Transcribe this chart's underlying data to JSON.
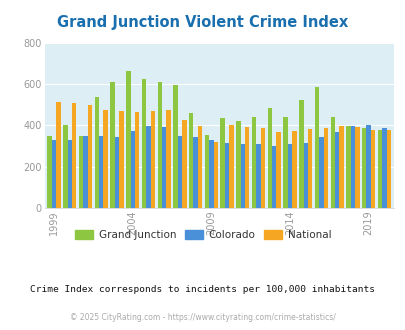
{
  "title": "Grand Junction Violent Crime Index",
  "title_color": "#1a6faf",
  "subtitle": "Crime Index corresponds to incidents per 100,000 inhabitants",
  "copyright": "© 2025 CityRating.com - https://www.cityrating.com/crime-statistics/",
  "years": [
    1999,
    2000,
    2001,
    2002,
    2003,
    2004,
    2005,
    2006,
    2007,
    2008,
    2009,
    2010,
    2011,
    2012,
    2013,
    2014,
    2015,
    2016,
    2017,
    2018,
    2019,
    2020
  ],
  "grand_junction": [
    350,
    400,
    348,
    540,
    608,
    662,
    623,
    612,
    595,
    462,
    352,
    435,
    423,
    440,
    486,
    440,
    522,
    585,
    440,
    395,
    385,
    380
  ],
  "colorado": [
    330,
    330,
    350,
    348,
    345,
    372,
    398,
    392,
    348,
    345,
    330,
    316,
    310,
    310,
    300,
    310,
    315,
    343,
    367,
    397,
    400,
    385
  ],
  "national": [
    512,
    510,
    500,
    477,
    468,
    463,
    470,
    477,
    425,
    398,
    320,
    403,
    392,
    389,
    369,
    375,
    383,
    387,
    395,
    393,
    380,
    380
  ],
  "xtick_labels": [
    "1999",
    "2004",
    "2009",
    "2014",
    "2019"
  ],
  "xtick_positions": [
    0,
    5,
    10,
    15,
    20
  ],
  "ylim": [
    0,
    800
  ],
  "yticks": [
    0,
    200,
    400,
    600,
    800
  ],
  "bar_width": 0.28,
  "color_gj": "#8dc641",
  "color_co": "#4a90d9",
  "color_nat": "#f5a623",
  "bg_color": "#ddeef5",
  "fig_bg": "#ffffff",
  "legend_labels": [
    "Grand Junction",
    "Colorado",
    "National"
  ],
  "grid_color": "#ffffff",
  "subtitle_color": "#111111",
  "copyright_color": "#aaaaaa",
  "tick_color": "#999999"
}
